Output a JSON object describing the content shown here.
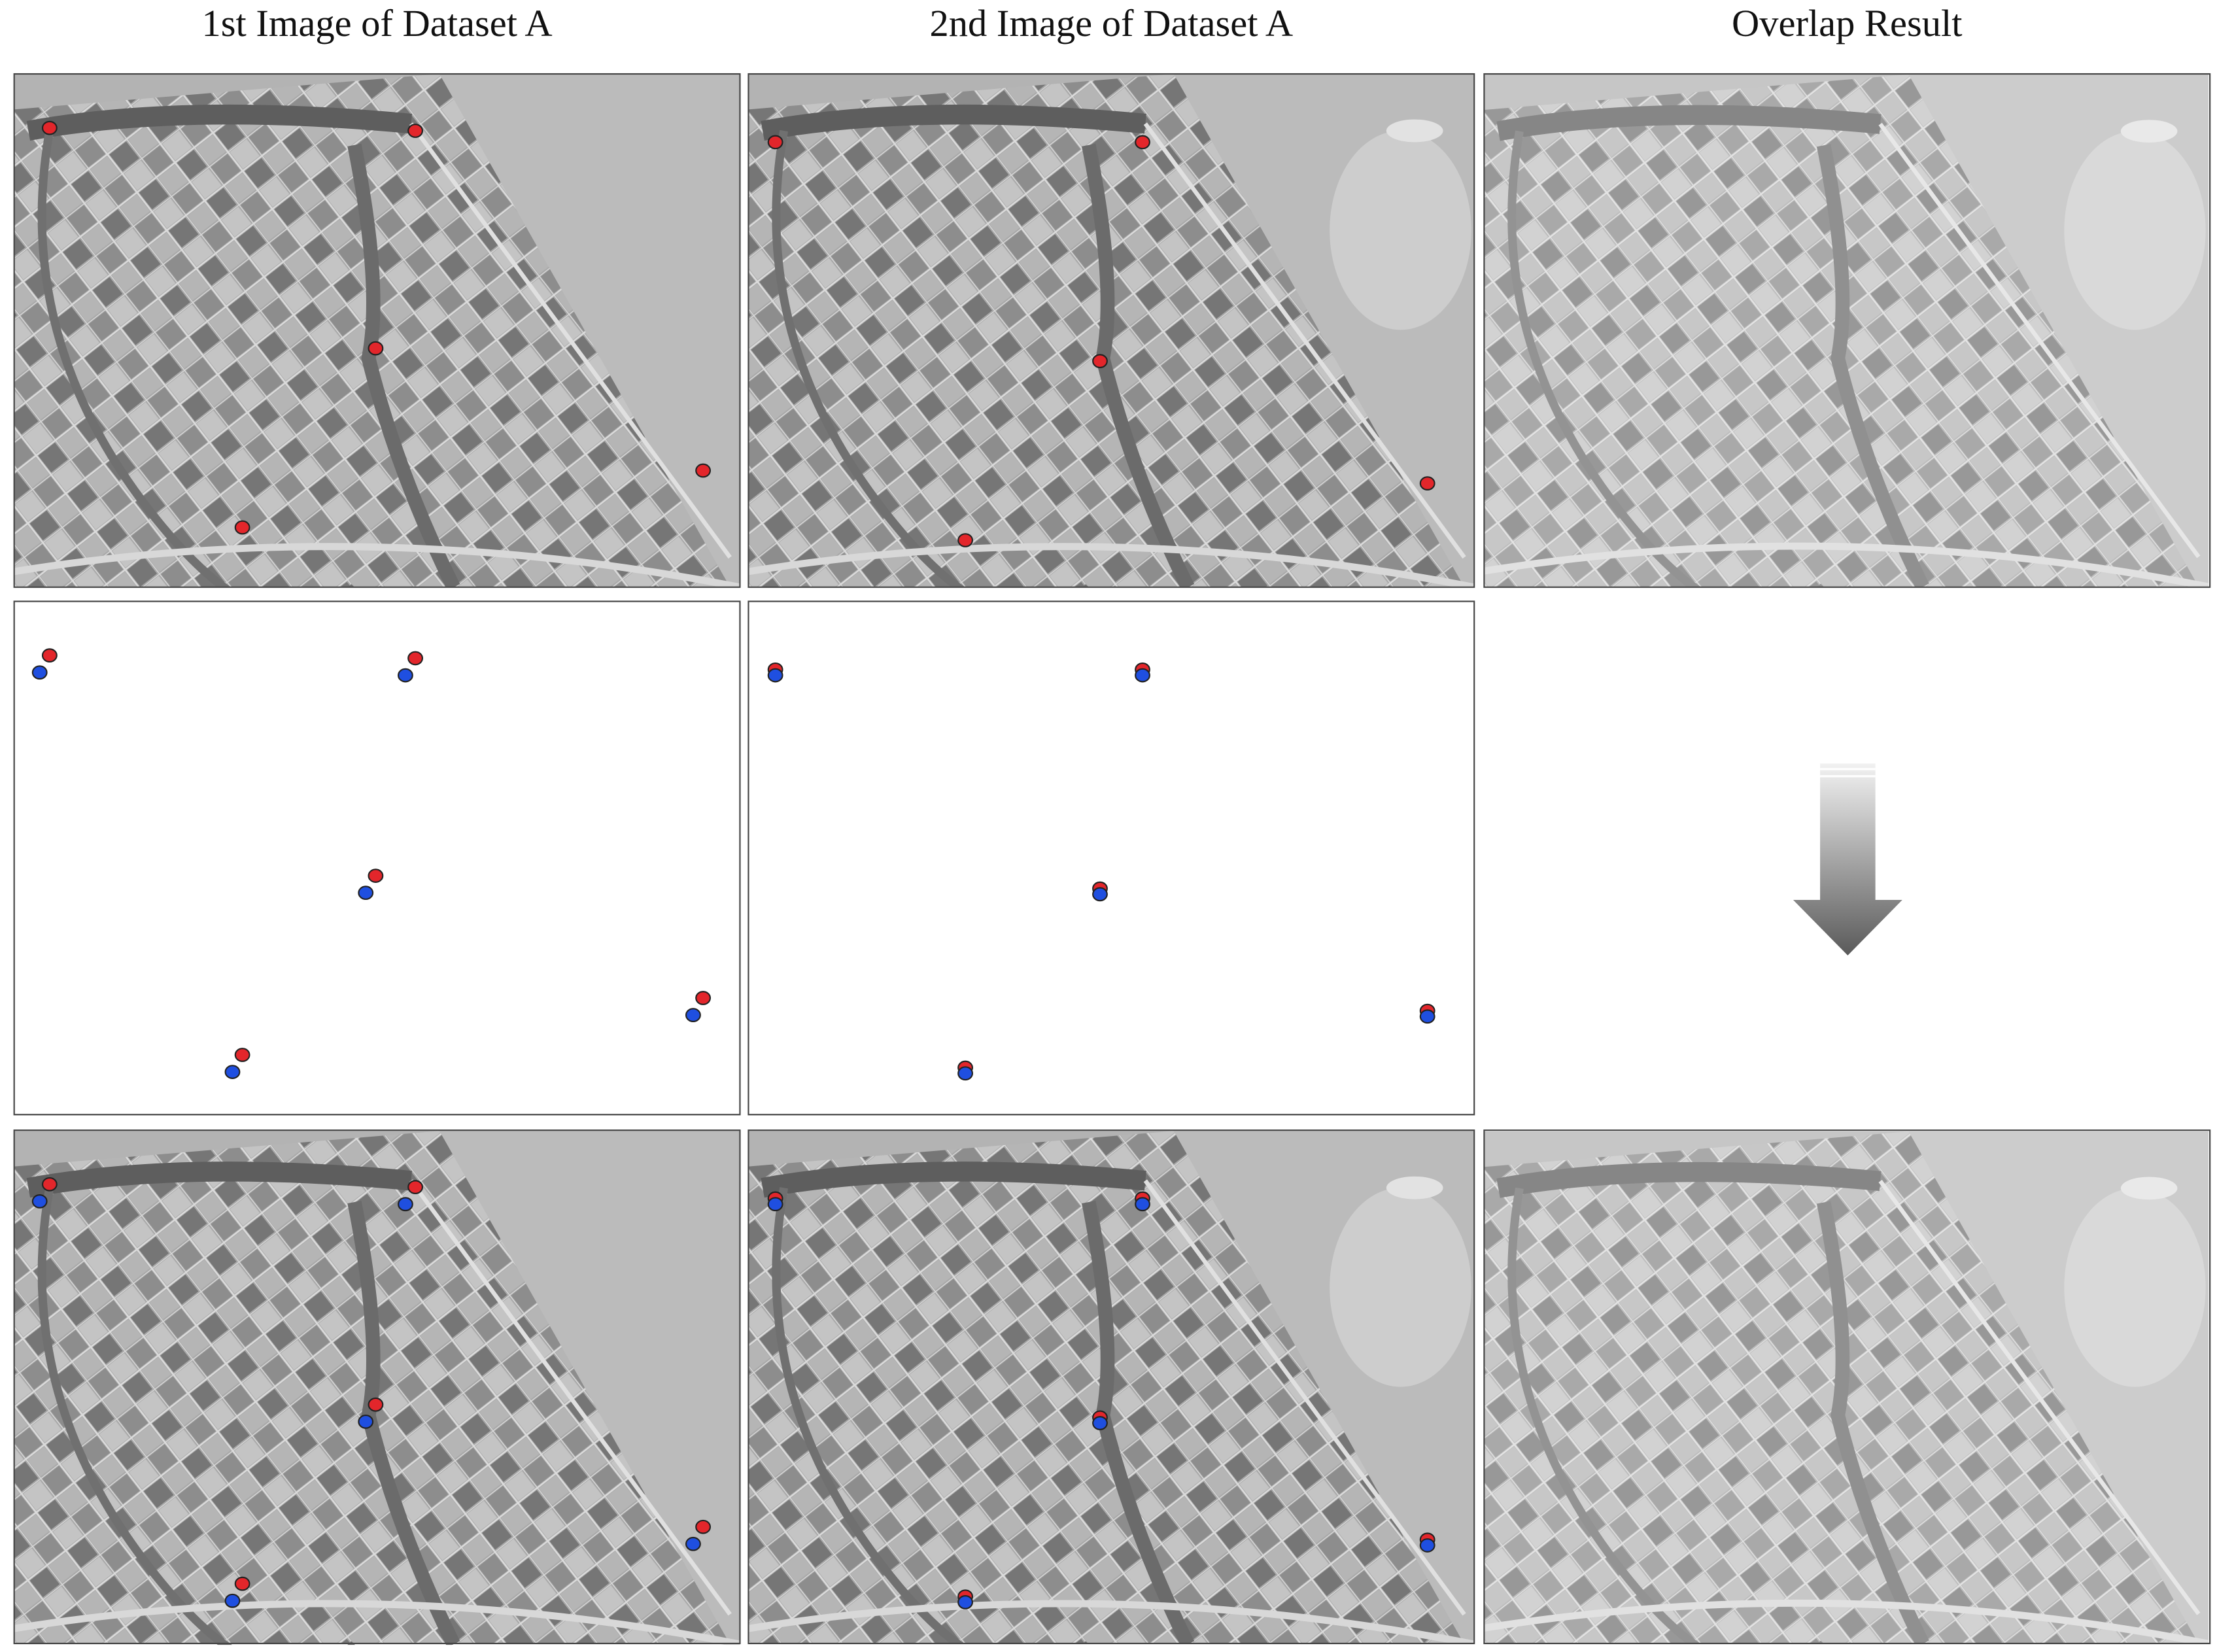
{
  "headers": [
    "1st Image of Dataset A",
    "2nd Image of Dataset A",
    "Overlap Result"
  ]
}
